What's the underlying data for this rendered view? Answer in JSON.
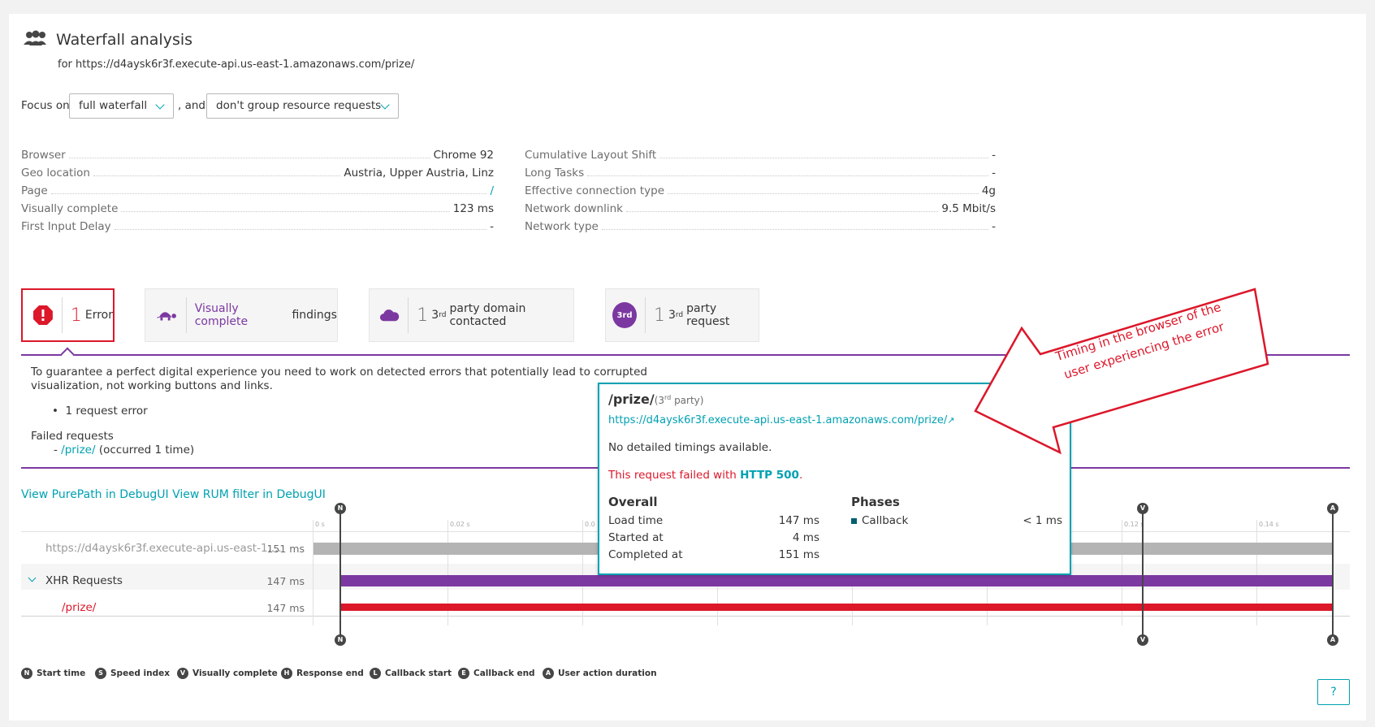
{
  "header": {
    "title": "Waterfall analysis",
    "subtitle": "for https://d4aysk6r3f.execute-api.us-east-1.amazonaws.com/prize/"
  },
  "filters": {
    "focus_label": "Focus on",
    "focus_value": "full waterfall",
    "and_label": ", and",
    "group_value": "don't group resource requests"
  },
  "details_left": [
    {
      "key": "Browser",
      "value": "Chrome 92"
    },
    {
      "key": "Geo location",
      "value": "Austria, Upper Austria, Linz"
    },
    {
      "key": "Page",
      "value": "/"
    },
    {
      "key": "Visually complete",
      "value": "123 ms"
    },
    {
      "key": "First Input Delay",
      "value": "-"
    }
  ],
  "details_right": [
    {
      "key": "Cumulative Layout Shift",
      "value": "-"
    },
    {
      "key": "Long Tasks",
      "value": "-"
    },
    {
      "key": "Effective connection type",
      "value": "4g"
    },
    {
      "key": "Network downlink",
      "value": "9.5 Mbit/s"
    },
    {
      "key": "Network type",
      "value": "-"
    }
  ],
  "cards": {
    "error": {
      "count": "1",
      "label": "Error"
    },
    "visually": {
      "link": "Visually complete",
      "label": "findings"
    },
    "domain": {
      "count": "1",
      "sup": "rd",
      "prefix": "3",
      "label": "party domain contacted"
    },
    "request": {
      "badge": "3rd",
      "count": "1",
      "sup": "rd",
      "prefix": "3",
      "label": "party request"
    }
  },
  "error_panel": {
    "message": "To guarantee a perfect digital experience you need to work on detected errors that potentially lead to corrupted visualization, not working buttons and links.",
    "bullet": "1 request error",
    "failed_title": "Failed requests",
    "failed_dash": "-",
    "failed_link": "/prize/",
    "failed_suffix": "(occurred 1 time)"
  },
  "links": {
    "purepath": "View PurePath in DebugUI",
    "rum": "View RUM filter in DebugUI"
  },
  "waterfall": {
    "rows": [
      {
        "label": "https://d4aysk6r3f.execute-api.us-east-1....",
        "duration": "151 ms"
      },
      {
        "label": "XHR Requests",
        "duration": "147 ms"
      },
      {
        "label": "/prize/",
        "duration": "147 ms"
      }
    ],
    "ticks": [
      "0 s",
      "0.02 s",
      "0.0",
      "0.12 s",
      "0.14 s"
    ],
    "markers": {
      "start": "N",
      "visual": "V",
      "action": "A"
    }
  },
  "legend": [
    {
      "letter": "N",
      "label": "Start time"
    },
    {
      "letter": "S",
      "label": "Speed index"
    },
    {
      "letter": "V",
      "label": "Visually complete"
    },
    {
      "letter": "H",
      "label": "Response end"
    },
    {
      "letter": "L",
      "label": "Callback start"
    },
    {
      "letter": "E",
      "label": "Callback end"
    },
    {
      "letter": "A",
      "label": "User action duration"
    }
  ],
  "tooltip": {
    "title": "/prize/",
    "party_prefix": "(3",
    "party_sup": "rd",
    "party_suffix": " party)",
    "url": "https://d4aysk6r3f.execute-api.us-east-1.amazonaws.com/prize/",
    "no_timings": "No detailed timings available.",
    "failed_prefix": "This request failed with ",
    "failed_code": "HTTP 500",
    "failed_suffix": ".",
    "overall_title": "Overall",
    "overall": [
      {
        "key": "Load time",
        "value": "147 ms"
      },
      {
        "key": "Started at",
        "value": "4 ms"
      },
      {
        "key": "Completed at",
        "value": "151 ms"
      }
    ],
    "phases_title": "Phases",
    "phases": [
      {
        "key": "Callback",
        "value": "< 1 ms"
      }
    ]
  },
  "annotation": {
    "text": "Timing in the browser of the user experiencing the error"
  },
  "help": {
    "label": "?"
  },
  "colors": {
    "accent": "#00a1b2",
    "purple": "#7c38a1",
    "error": "#dc172a",
    "grey_bar": "#b4b4b4"
  }
}
